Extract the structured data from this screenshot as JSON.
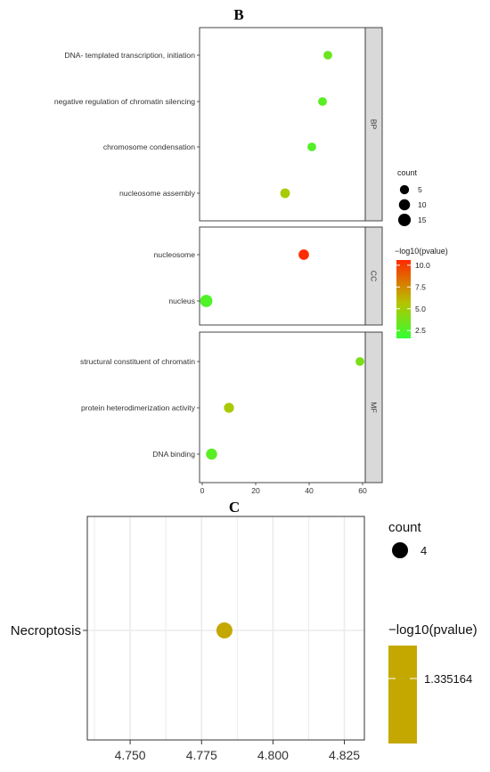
{
  "panels": {
    "B": {
      "letter": "B"
    },
    "C": {
      "letter": "C"
    }
  },
  "colors": {
    "panel_bg": "#ffffff",
    "panel_border": "#333333",
    "grid": "#ebebeb",
    "strip_bg": "#d9d9d9",
    "gradient_low": "#33ff33",
    "gradient_mid": "#b5c400",
    "gradient_high": "#ff2a00",
    "necroptosis_color": "#c4a800"
  },
  "chart_data": [
    {
      "id": "B",
      "type": "scatter",
      "title": "",
      "xlabel": "",
      "ylabel": "",
      "xlim": [
        -1,
        61
      ],
      "x_ticks": [
        0,
        20,
        40,
        60
      ],
      "grid": true,
      "legend_placement": "right",
      "facets": [
        {
          "strip": "BP",
          "terms": [
            {
              "label": "DNA- templated transcription, initiation",
              "x": 47,
              "count": 4,
              "log10p": 3.3
            },
            {
              "label": "negative regulation of chromatin silencing",
              "x": 45,
              "count": 4,
              "log10p": 2.8
            },
            {
              "label": "chromosome condensation",
              "x": 41,
              "count": 4,
              "log10p": 2.6
            },
            {
              "label": "nucleosome assembly",
              "x": 31,
              "count": 6,
              "log10p": 5.2
            }
          ]
        },
        {
          "strip": "CC",
          "terms": [
            {
              "label": "nucleosome",
              "x": 38,
              "count": 8,
              "log10p": 10.5
            },
            {
              "label": "nucleus",
              "x": 1.5,
              "count": 14,
              "log10p": 2.5
            }
          ]
        },
        {
          "strip": "MF",
          "terms": [
            {
              "label": "structural constituent of chromatin",
              "x": 59,
              "count": 4,
              "log10p": 3.8
            },
            {
              "label": "protein heterodimerization activity",
              "x": 10,
              "count": 7,
              "log10p": 5.3
            },
            {
              "label": "DNA binding",
              "x": 3.5,
              "count": 10,
              "log10p": 2.8
            }
          ]
        }
      ],
      "size_legend": {
        "title": "count",
        "breaks": [
          "5",
          "10",
          "15"
        ]
      },
      "color_legend": {
        "title": "−log10(pvalue)",
        "breaks": [
          "10.0",
          "7.5",
          "5.0",
          "2.5"
        ],
        "break_values": [
          10,
          7.5,
          5,
          2.5
        ],
        "range": [
          1.6,
          10.6
        ]
      }
    },
    {
      "id": "C",
      "type": "scatter",
      "title": "",
      "xlabel": "",
      "ylabel": "",
      "xlim": [
        4.735,
        4.832
      ],
      "x_ticks": [
        4.75,
        4.775,
        4.8,
        4.825
      ],
      "x_tick_labels": [
        "4.750",
        "4.775",
        "4.800",
        "4.825"
      ],
      "grid": true,
      "legend_placement": "right",
      "terms": [
        {
          "label": "Necroptosis",
          "x": 4.783,
          "count": 4,
          "log10p": 1.335164
        }
      ],
      "size_legend": {
        "title": "count",
        "breaks": [
          "4"
        ]
      },
      "color_legend": {
        "title": "−log10(pvalue)",
        "breaks": [
          "1.335164"
        ]
      }
    }
  ]
}
